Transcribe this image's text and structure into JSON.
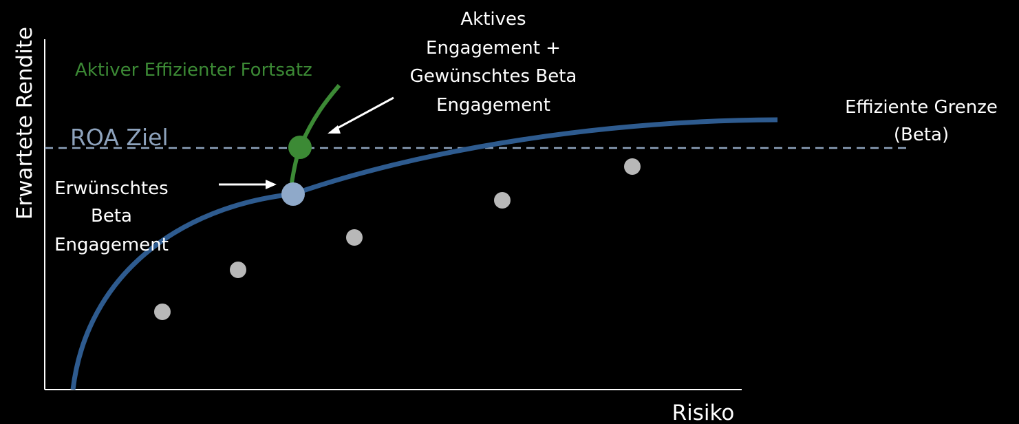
{
  "colors": {
    "background": "#000000",
    "frontier": "#2e5b8f",
    "extension": "#3c8a35",
    "target_line": "#8ea3bd",
    "desired_point": "#8fa9c9",
    "asset_points": "#b8b8b8",
    "text": "#ffffff"
  },
  "axes": {
    "x_label": "Risiko",
    "y_label": "Erwartete Rendite"
  },
  "target": {
    "label": "ROA Ziel"
  },
  "frontier": {
    "label_line1": "Effiziente Grenze",
    "label_line2": "(Beta)"
  },
  "extension": {
    "label": "Aktiver Effizienter Fortsatz"
  },
  "desired_beta": {
    "line1": "Erwünschtes",
    "line2": "Beta",
    "line3": "Engagement"
  },
  "active_plus_beta": {
    "line1": "Aktives",
    "line2": "Engagement +",
    "line3": "Gewünschtes Beta",
    "line4": "Engagement"
  },
  "asset_point_count": 5
}
